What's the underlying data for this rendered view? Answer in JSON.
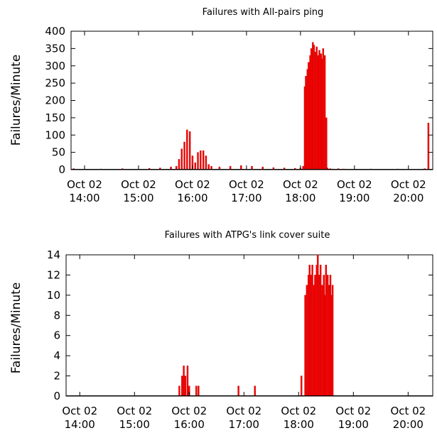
{
  "chart_data": [
    {
      "type": "bar",
      "title": "Failures with All-pairs ping",
      "xlabel": "",
      "ylabel": "Failures/Minute",
      "ylim": [
        0,
        400
      ],
      "yticks": [
        0,
        50,
        100,
        150,
        200,
        250,
        300,
        350,
        400
      ],
      "xlim_hours": [
        13.75,
        20.45
      ],
      "xticks": [
        {
          "hour": 14,
          "line1": "Oct 02",
          "line2": "14:00"
        },
        {
          "hour": 15,
          "line1": "Oct 02",
          "line2": "15:00"
        },
        {
          "hour": 16,
          "line1": "Oct 02",
          "line2": "16:00"
        },
        {
          "hour": 17,
          "line1": "Oct 02",
          "line2": "17:00"
        },
        {
          "hour": 18,
          "line1": "Oct 02",
          "line2": "18:00"
        },
        {
          "hour": 19,
          "line1": "Oct 02",
          "line2": "19:00"
        },
        {
          "hour": 20,
          "line1": "Oct 02",
          "line2": "20:00"
        }
      ],
      "bar_color": "#ff0000",
      "series": [
        {
          "x": [
            13.8,
            14.3,
            14.7,
            15.2,
            15.4,
            15.6,
            15.7,
            15.75,
            15.8,
            15.85,
            15.9,
            15.95,
            16.0,
            16.05,
            16.1,
            16.15,
            16.2,
            16.25,
            16.3,
            16.35,
            16.5,
            16.7,
            16.9,
            17.1,
            17.3,
            17.5,
            17.7,
            17.9,
            18.0,
            18.05,
            18.08,
            18.1,
            18.13,
            18.15,
            18.18,
            18.2,
            18.23,
            18.25,
            18.28,
            18.3,
            18.33,
            18.35,
            18.38,
            18.4,
            18.42,
            18.45,
            18.48,
            18.5,
            18.55,
            18.6,
            18.7,
            18.8,
            19.3,
            19.8,
            20.3,
            20.37
          ],
          "y": [
            3,
            2,
            3,
            4,
            5,
            8,
            10,
            30,
            60,
            80,
            115,
            110,
            40,
            20,
            50,
            55,
            55,
            40,
            15,
            10,
            8,
            10,
            12,
            10,
            8,
            6,
            5,
            4,
            5,
            10,
            240,
            270,
            290,
            310,
            330,
            350,
            368,
            360,
            340,
            355,
            330,
            345,
            335,
            320,
            350,
            330,
            150,
            5,
            3,
            2,
            3,
            2,
            2,
            2,
            3,
            135
          ]
        }
      ]
    },
    {
      "type": "bar",
      "title": "Failures with ATPG's link cover suite",
      "xlabel": "",
      "ylabel": "Failures/Minute",
      "ylim": [
        0,
        14
      ],
      "yticks": [
        0,
        2,
        4,
        6,
        8,
        10,
        12,
        14
      ],
      "xlim_hours": [
        13.75,
        20.45
      ],
      "xticks": [
        {
          "hour": 14,
          "line1": "Oct 02",
          "line2": "14:00"
        },
        {
          "hour": 15,
          "line1": "Oct 02",
          "line2": "15:00"
        },
        {
          "hour": 16,
          "line1": "Oct 02",
          "line2": "16:00"
        },
        {
          "hour": 17,
          "line1": "Oct 02",
          "line2": "17:00"
        },
        {
          "hour": 18,
          "line1": "Oct 02",
          "line2": "18:00"
        },
        {
          "hour": 19,
          "line1": "Oct 02",
          "line2": "19:00"
        },
        {
          "hour": 20,
          "line1": "Oct 02",
          "line2": "20:00"
        }
      ],
      "bar_color": "#ff0000",
      "series": [
        {
          "x": [
            15.82,
            15.87,
            15.9,
            15.93,
            15.97,
            16.0,
            16.13,
            16.17,
            16.9,
            17.2,
            18.05,
            18.12,
            18.15,
            18.18,
            18.2,
            18.22,
            18.25,
            18.28,
            18.3,
            18.33,
            18.35,
            18.38,
            18.4,
            18.43,
            18.46,
            18.48,
            18.5,
            18.53,
            18.56,
            18.58,
            18.6,
            18.62
          ],
          "y": [
            1,
            2,
            3,
            2,
            3,
            1,
            1,
            1,
            1,
            1,
            2,
            10,
            11,
            12,
            13,
            12,
            13,
            11,
            12,
            13,
            14,
            12,
            13,
            11,
            12,
            10,
            13,
            12,
            11,
            12,
            10,
            11
          ]
        }
      ]
    }
  ]
}
